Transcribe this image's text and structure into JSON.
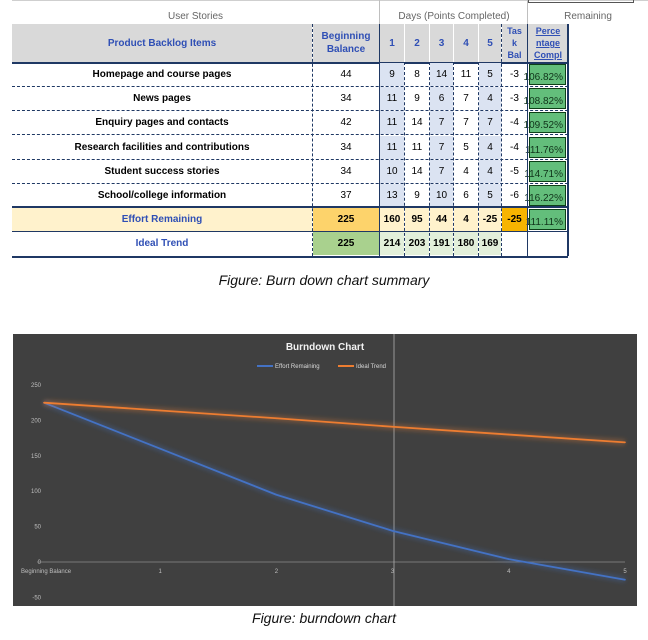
{
  "sheet": {
    "group_headers": {
      "user_stories": "User Stories",
      "days": "Days (Points Completed)",
      "remaining": "Remaining"
    },
    "col_headers": {
      "item": "Product Backlog Items",
      "beginning": [
        "Beginning",
        "Balance"
      ],
      "days": [
        "1",
        "2",
        "3",
        "4",
        "5"
      ],
      "task_bal": [
        "Tas",
        "k",
        "Bal"
      ],
      "percent": [
        "Perce",
        "ntage",
        "Compl"
      ]
    },
    "rows": [
      {
        "item": "Homepage and course pages",
        "balance": "44",
        "days": [
          "9",
          "8",
          "14",
          "11",
          "5"
        ],
        "task_bal": "-3",
        "pct": "106.82%"
      },
      {
        "item": "News pages",
        "balance": "34",
        "days": [
          "11",
          "9",
          "6",
          "7",
          "4"
        ],
        "task_bal": "-3",
        "pct": "108.82%"
      },
      {
        "item": "Enquiry pages and contacts",
        "balance": "42",
        "days": [
          "11",
          "14",
          "7",
          "7",
          "7"
        ],
        "task_bal": "-4",
        "pct": "109.52%"
      },
      {
        "item": "Research facilities and contributions",
        "balance": "34",
        "days": [
          "11",
          "11",
          "7",
          "5",
          "4"
        ],
        "task_bal": "-4",
        "pct": "111.76%"
      },
      {
        "item": "Student success stories",
        "balance": "34",
        "days": [
          "10",
          "14",
          "7",
          "4",
          "4"
        ],
        "task_bal": "-5",
        "pct": "114.71%"
      },
      {
        "item": "School/college information",
        "balance": "37",
        "days": [
          "13",
          "9",
          "10",
          "6",
          "5"
        ],
        "task_bal": "-6",
        "pct": "116.22%"
      }
    ],
    "effort": {
      "label": "Effort Remaining",
      "balance": "225",
      "days": [
        "160",
        "95",
        "44",
        "4",
        "-25"
      ],
      "task_bal": "-25",
      "pct": "111.11%"
    },
    "ideal": {
      "label": "Ideal Trend",
      "balance": "225",
      "days": [
        "214",
        "203",
        "191",
        "180",
        "169"
      ]
    }
  },
  "captions": {
    "table": "Figure: Burn down chart summary",
    "chart": "Figure: burndown chart"
  },
  "colors": {
    "effort_line": "#4472c4",
    "ideal_line": "#ed7d31",
    "effort_total_bg": "#fdd36b",
    "ideal_total_bg": "#a9d18e",
    "effort_days_bg": "#fff2cc",
    "ideal_days_bg": "#e2efda",
    "neg_bg": "#f7b400"
  },
  "chart_data": {
    "type": "line",
    "title": "Burndown Chart",
    "categories": [
      "Beginning Balance",
      "1",
      "2",
      "3",
      "4",
      "5"
    ],
    "series": [
      {
        "name": "Effort Remaining",
        "values": [
          225,
          160,
          95,
          44,
          4,
          -25
        ]
      },
      {
        "name": "Ideal Trend",
        "values": [
          225,
          214,
          203,
          191,
          180,
          169
        ]
      }
    ],
    "y_ticks": [
      "250",
      "200",
      "150",
      "100",
      "50",
      "0",
      "-50"
    ],
    "ylim": [
      -50,
      250
    ],
    "legend": "top",
    "grid": false
  }
}
